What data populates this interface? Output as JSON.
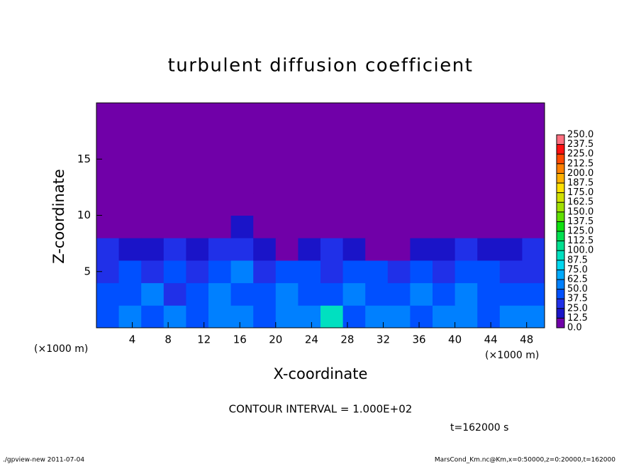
{
  "chart_data": {
    "type": "heatmap",
    "title": "turbulent diffusion coefficient",
    "xlabel": "X-coordinate",
    "ylabel": "Z-coordinate",
    "x_unit_left": "(×1000 m)",
    "x_unit_right": "(×1000 m)",
    "contour_interval": "CONTOUR INTERVAL = 1.000E+02",
    "time_label": "t=162000 s",
    "footer_left": "./gpview-new  2011-07-04",
    "footer_right": "MarsCond_Km.nc@Km,x=0:50000,z=0:20000,t=162000",
    "xlim": [
      0,
      50
    ],
    "ylim": [
      0,
      20
    ],
    "xticks": [
      4,
      8,
      12,
      16,
      20,
      24,
      28,
      32,
      36,
      40,
      44,
      48
    ],
    "yticks": [
      5,
      10,
      15
    ],
    "x": [
      1.25,
      3.75,
      6.25,
      8.75,
      11.25,
      13.75,
      16.25,
      18.75,
      21.25,
      23.75,
      26.25,
      28.75,
      31.25,
      33.75,
      36.25,
      38.75,
      41.25,
      43.75,
      46.25,
      48.75
    ],
    "z": [
      1,
      3,
      5,
      7,
      9,
      11,
      13,
      15,
      17,
      19
    ],
    "values": [
      [
        45,
        50,
        40,
        55,
        45,
        60,
        50,
        45,
        55,
        50,
        90,
        45,
        50,
        55,
        45,
        60,
        50,
        45,
        55,
        50
      ],
      [
        40,
        45,
        50,
        35,
        40,
        55,
        45,
        40,
        50,
        45,
        40,
        55,
        45,
        40,
        50,
        45,
        55,
        40,
        45,
        40
      ],
      [
        35,
        40,
        30,
        45,
        35,
        40,
        50,
        35,
        40,
        45,
        35,
        40,
        45,
        35,
        40,
        35,
        45,
        40,
        35,
        30
      ],
      [
        30,
        20,
        15,
        25,
        20,
        35,
        30,
        15,
        10,
        20,
        30,
        15,
        10,
        10,
        15,
        20,
        25,
        15,
        20,
        25
      ],
      [
        10,
        5,
        5,
        5,
        10,
        10,
        15,
        10,
        5,
        5,
        0,
        5,
        0,
        0,
        0,
        5,
        5,
        0,
        0,
        10
      ],
      [
        5,
        5,
        0,
        5,
        10,
        10,
        5,
        5,
        0,
        5,
        5,
        5,
        0,
        0,
        0,
        0,
        0,
        0,
        0,
        5
      ],
      [
        0,
        0,
        0,
        0,
        5,
        0,
        0,
        0,
        0,
        0,
        0,
        0,
        0,
        0,
        0,
        0,
        5,
        0,
        0,
        0
      ],
      [
        0,
        0,
        0,
        0,
        0,
        0,
        0,
        0,
        0,
        0,
        0,
        0,
        0,
        0,
        0,
        0,
        0,
        0,
        0,
        0
      ],
      [
        0,
        0,
        0,
        0,
        0,
        0,
        0,
        10,
        0,
        0,
        0,
        0,
        0,
        0,
        5,
        0,
        0,
        0,
        0,
        5
      ],
      [
        0,
        0,
        0,
        0,
        0,
        0,
        0,
        0,
        0,
        0,
        0,
        0,
        0,
        0,
        0,
        0,
        0,
        0,
        0,
        0
      ]
    ],
    "cticks": [
      {
        "value": 0,
        "label": "0.0"
      },
      {
        "value": 12.5,
        "label": "12.5"
      },
      {
        "value": 25,
        "label": "25.0"
      },
      {
        "value": 37.5,
        "label": "37.5"
      },
      {
        "value": 50,
        "label": "50.0"
      },
      {
        "value": 62.5,
        "label": "62.5"
      },
      {
        "value": 75,
        "label": "75.0"
      },
      {
        "value": 87.5,
        "label": "87.5"
      },
      {
        "value": 100,
        "label": "100.0"
      },
      {
        "value": 112.5,
        "label": "112.5"
      },
      {
        "value": 125,
        "label": "125.0"
      },
      {
        "value": 137.5,
        "label": "137.5"
      },
      {
        "value": 150,
        "label": "150.0"
      },
      {
        "value": 162.5,
        "label": "162.5"
      },
      {
        "value": 175,
        "label": "175.0"
      },
      {
        "value": 187.5,
        "label": "187.5"
      },
      {
        "value": 200,
        "label": "200.0"
      },
      {
        "value": 212.5,
        "label": "212.5"
      },
      {
        "value": 225,
        "label": "225.0"
      },
      {
        "value": 237.5,
        "label": "237.5"
      },
      {
        "value": 250,
        "label": "250.0"
      }
    ],
    "colors": [
      "#7000a8",
      "#1a14c8",
      "#2030e8",
      "#0050ff",
      "#0080ff",
      "#00aaff",
      "#00d8f0",
      "#00e0c0",
      "#00e090",
      "#00e050",
      "#10e010",
      "#60e000",
      "#a0e000",
      "#d0e000",
      "#ffe000",
      "#ffb000",
      "#ff8000",
      "#ff4800",
      "#ff1010",
      "#ff7080"
    ]
  }
}
